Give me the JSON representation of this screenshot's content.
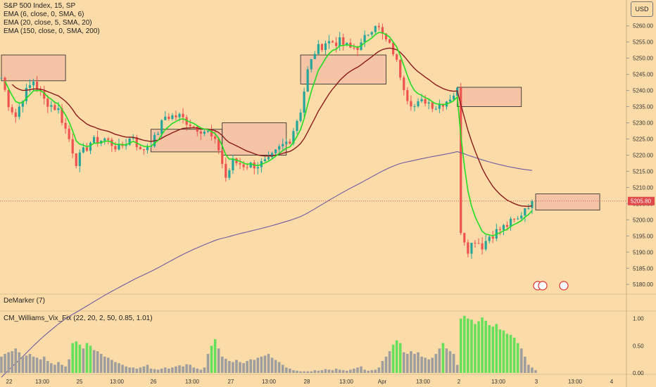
{
  "header": {
    "symbol": "S&P 500 Index, 15, SP",
    "indicators": [
      "EMA (6, close, 0, SMA, 6)",
      "EMA (20, close, 5, SMA, 20)",
      "EMA (150, close, 0, SMA, 200)"
    ],
    "currency": "USD"
  },
  "panes": {
    "demarker_label": "DeMarker (7)",
    "vix_label": "CM_Williams_Vix_Fix (22, 20, 2, 50, 0.85, 1.01)"
  },
  "colors": {
    "background": "#fbdca9",
    "bull": "#26a69a",
    "bear": "#ef5350",
    "ema_fast": "#22dd22",
    "ema_mid": "#8b1a1a",
    "ema_slow": "#6e5aa0",
    "zone_fill": "#f4c4a4",
    "vix_high": "#66e05a",
    "vix_low": "#9e9e9e",
    "price_label": "#e04a4a"
  },
  "chart_data": [
    {
      "type": "candlestick",
      "x_ticks": [
        "22",
        "13:00",
        "25",
        "13:00",
        "26",
        "13:00",
        "27",
        "13:00",
        "28",
        "13:00",
        "Apr",
        "13:00",
        "2",
        "13:00",
        "3",
        "13:00",
        "4"
      ],
      "y_ticks": [
        "5260.00",
        "5255.00",
        "5250.00",
        "5245.00",
        "5240.00",
        "5235.00",
        "5230.00",
        "5225.00",
        "5220.00",
        "5215.00",
        "5210.00",
        "5205.00",
        "5200.00",
        "5195.00",
        "5190.00",
        "5185.00",
        "5180.00"
      ],
      "ylim": [
        5177,
        5268
      ],
      "last_price": "5205.80",
      "key_closes": [
        [
          0,
          5244
        ],
        [
          2,
          5236
        ],
        [
          4,
          5232
        ],
        [
          6,
          5238
        ],
        [
          9,
          5243
        ],
        [
          12,
          5237
        ],
        [
          16,
          5234
        ],
        [
          19,
          5225
        ],
        [
          21,
          5218
        ],
        [
          25,
          5224
        ],
        [
          29,
          5225
        ],
        [
          33,
          5222
        ],
        [
          37,
          5226
        ],
        [
          39,
          5221
        ],
        [
          43,
          5225
        ],
        [
          46,
          5232
        ],
        [
          50,
          5232
        ],
        [
          54,
          5229
        ],
        [
          58,
          5227
        ],
        [
          61,
          5222
        ],
        [
          63,
          5213
        ],
        [
          65,
          5218
        ],
        [
          68,
          5217
        ],
        [
          72,
          5217
        ],
        [
          75,
          5218
        ],
        [
          78,
          5222
        ],
        [
          81,
          5225
        ],
        [
          84,
          5234
        ],
        [
          86,
          5246
        ],
        [
          88,
          5252
        ],
        [
          91,
          5255
        ],
        [
          95,
          5255
        ],
        [
          98,
          5253
        ],
        [
          101,
          5254
        ],
        [
          103,
          5258
        ],
        [
          105,
          5261
        ],
        [
          107,
          5257
        ],
        [
          110,
          5252
        ],
        [
          112,
          5245
        ],
        [
          114,
          5238
        ],
        [
          116,
          5235
        ],
        [
          119,
          5237
        ],
        [
          122,
          5235
        ],
        [
          125,
          5237
        ],
        [
          128,
          5240
        ],
        [
          129,
          5197
        ],
        [
          131,
          5191
        ],
        [
          133,
          5194
        ],
        [
          135,
          5192
        ],
        [
          137,
          5195
        ],
        [
          140,
          5197
        ],
        [
          143,
          5199
        ],
        [
          145,
          5200
        ],
        [
          147,
          5204
        ],
        [
          149,
          5205.8
        ]
      ],
      "series": [
        {
          "name": "EMA (6, close, 0, SMA, 6)"
        },
        {
          "name": "EMA (20, close, 5, SMA, 20)"
        },
        {
          "name": "EMA (150, close, 0, SMA, 200)"
        }
      ],
      "zones": [
        {
          "from": 0,
          "to": 18,
          "top": 5251,
          "bottom": 5243
        },
        {
          "from": 42,
          "to": 62,
          "top": 5228,
          "bottom": 5221
        },
        {
          "from": 62,
          "to": 80,
          "top": 5230,
          "bottom": 5220
        },
        {
          "from": 84,
          "to": 108,
          "top": 5251,
          "bottom": 5242
        },
        {
          "from": 128,
          "to": 146,
          "top": 5241,
          "bottom": 5235
        },
        {
          "from": 150,
          "to": 168,
          "top": 5208,
          "bottom": 5203
        }
      ]
    },
    {
      "type": "bar",
      "name": "CM_Williams_Vix_Fix (22, 20, 2, 50, 0.85, 1.01)",
      "y_ticks": [
        "1.00",
        "0.50",
        "0.00"
      ],
      "ylim": [
        0,
        1.1
      ],
      "values": [
        0.3,
        0.35,
        0.38,
        0.4,
        0.45,
        0.38,
        0.3,
        0.32,
        0.35,
        0.3,
        0.28,
        0.25,
        0.3,
        0.22,
        0.18,
        0.15,
        0.2,
        0.15,
        0.12,
        0.25,
        0.55,
        0.58,
        0.52,
        0.45,
        0.55,
        0.5,
        0.42,
        0.4,
        0.35,
        0.3,
        0.28,
        0.24,
        0.2,
        0.18,
        0.15,
        0.12,
        0.1,
        0.1,
        0.08,
        0.1,
        0.12,
        0.15,
        0.08,
        0.07,
        0.06,
        0.08,
        0.1,
        0.08,
        0.1,
        0.12,
        0.14,
        0.12,
        0.16,
        0.15,
        0.1,
        0.08,
        0.06,
        0.1,
        0.35,
        0.5,
        0.62,
        0.45,
        0.3,
        0.26,
        0.22,
        0.2,
        0.24,
        0.2,
        0.18,
        0.22,
        0.25,
        0.24,
        0.28,
        0.3,
        0.32,
        0.35,
        0.28,
        0.24,
        0.2,
        0.15,
        0.1,
        0.08,
        0.05,
        0.04,
        0.03,
        0.03,
        0.03,
        0.03,
        0.05,
        0.04,
        0.05,
        0.07,
        0.06,
        0.05,
        0.08,
        0.06,
        0.05,
        0.04,
        0.06,
        0.08,
        0.1,
        0.12,
        0.06,
        0.04,
        0.05,
        0.06,
        0.1,
        0.22,
        0.3,
        0.4,
        0.52,
        0.6,
        0.55,
        0.38,
        0.35,
        0.4,
        0.35,
        0.38,
        0.3,
        0.28,
        0.25,
        0.28,
        0.35,
        0.45,
        0.55,
        0.45,
        0.4,
        0.35,
        0.15,
        1.0,
        1.05,
        1.0,
        0.98,
        0.9,
        0.95,
        1.02,
        0.96,
        0.88,
        0.85,
        0.9,
        0.8,
        0.78,
        0.72,
        0.7,
        0.65,
        0.55,
        0.45,
        0.3,
        0.15,
        0.1,
        0.05
      ],
      "high_threshold": 0.5
    }
  ]
}
